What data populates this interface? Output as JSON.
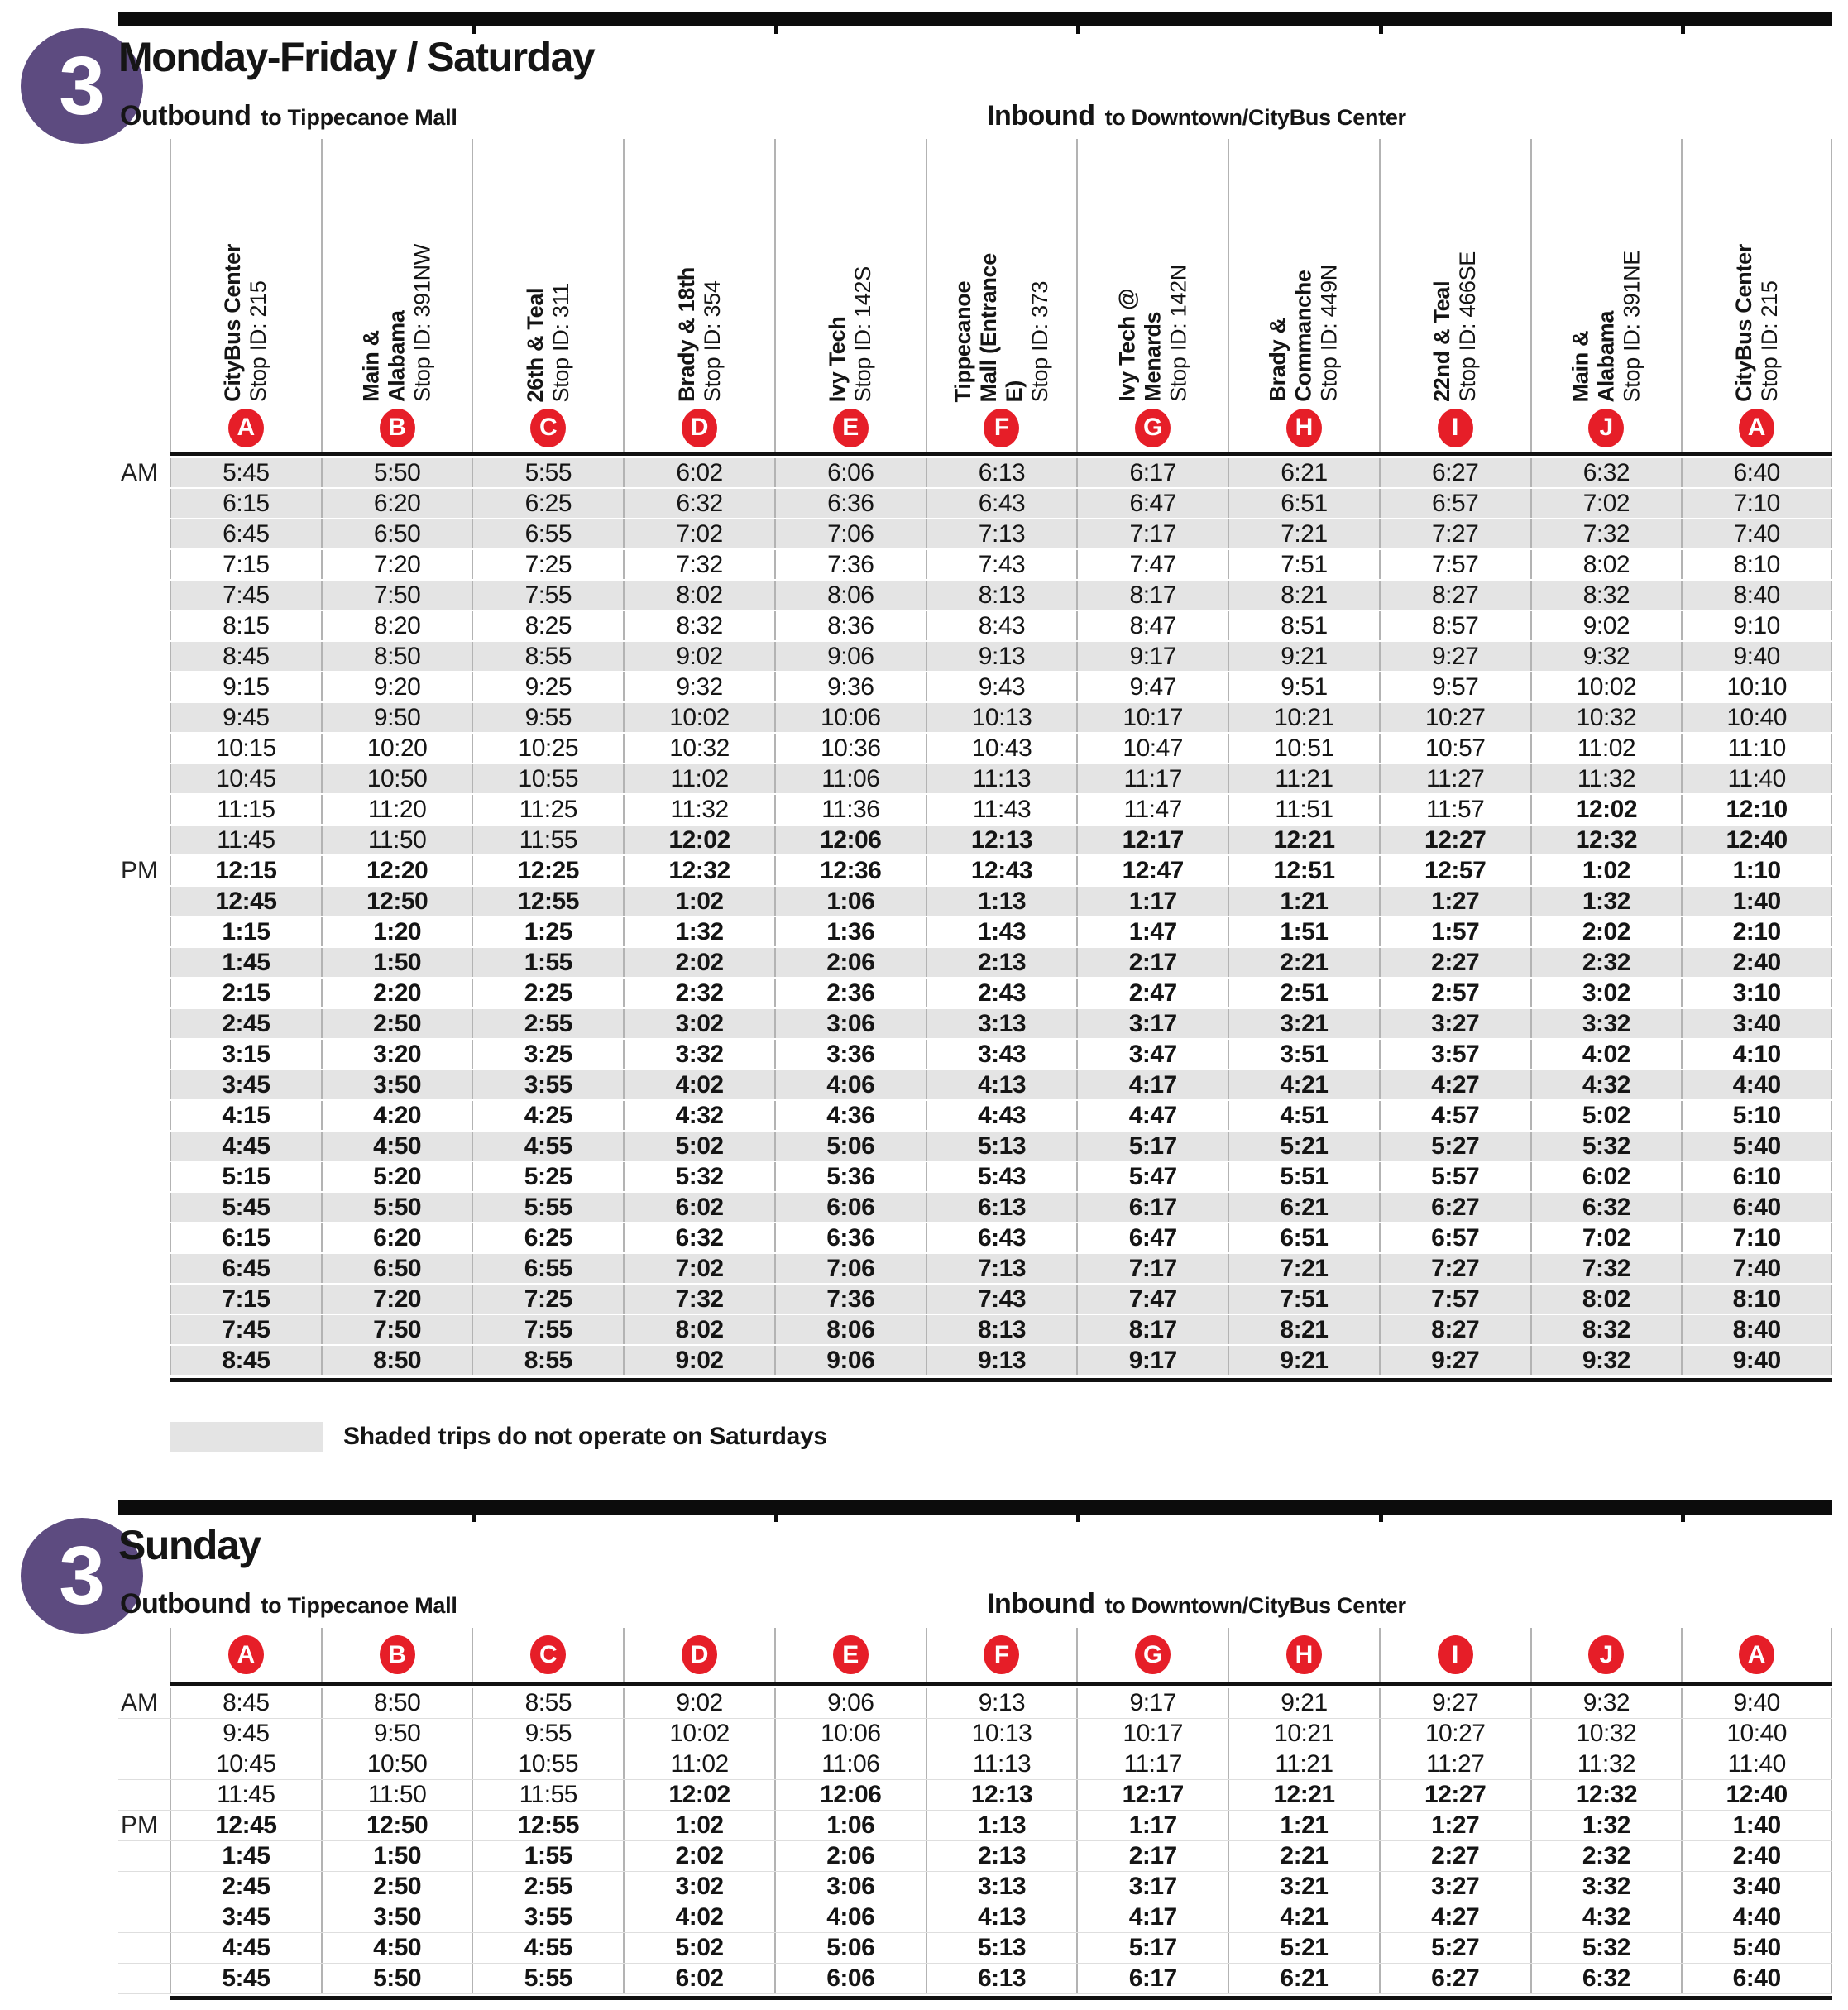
{
  "route_number": "3",
  "colors": {
    "badge_purple": "#5d4b80",
    "letter_red": "#e61e28",
    "row_shade": "#e4e4e4",
    "divider_gray": "#b3b3b3",
    "bar_black": "#0c0c0c"
  },
  "stops": [
    {
      "letter": "A",
      "name": "CityBus Center",
      "stop_id": "Stop ID: 215"
    },
    {
      "letter": "B",
      "name": "Main &\nAlabama",
      "stop_id": "Stop ID: 391NW"
    },
    {
      "letter": "C",
      "name": "26th & Teal",
      "stop_id": "Stop ID: 311"
    },
    {
      "letter": "D",
      "name": "Brady & 18th",
      "stop_id": "Stop ID: 354"
    },
    {
      "letter": "E",
      "name": "Ivy Tech",
      "stop_id": "Stop ID: 142S"
    },
    {
      "letter": "F",
      "name": "Tippecanoe\nMall (Entrance\nE)",
      "stop_id": "Stop ID: 373"
    },
    {
      "letter": "G",
      "name": "Ivy Tech @\nMenards",
      "stop_id": "Stop ID: 142N"
    },
    {
      "letter": "H",
      "name": "Brady &\nCommanche",
      "stop_id": "Stop ID: 449N"
    },
    {
      "letter": "I",
      "name": "22nd & Teal",
      "stop_id": "Stop ID: 466SE"
    },
    {
      "letter": "J",
      "name": "Main &\nAlabama",
      "stop_id": "Stop ID: 391NE"
    },
    {
      "letter": "A",
      "name": "CityBus Center",
      "stop_id": "Stop ID: 215"
    }
  ],
  "weekday": {
    "title": "Monday-Friday / Saturday",
    "outbound": {
      "label": "Outbound",
      "dest": "to Tippecanoe Mall"
    },
    "inbound": {
      "label": "Inbound",
      "dest": "to Downtown/CityBus Center"
    },
    "legend": "Shaded trips do not operate on Saturdays",
    "rows": [
      {
        "period": "AM",
        "shaded": true,
        "pm_from": 11,
        "times": [
          "5:45",
          "5:50",
          "5:55",
          "6:02",
          "6:06",
          "6:13",
          "6:17",
          "6:21",
          "6:27",
          "6:32",
          "6:40"
        ]
      },
      {
        "period": "",
        "shaded": true,
        "pm_from": 11,
        "times": [
          "6:15",
          "6:20",
          "6:25",
          "6:32",
          "6:36",
          "6:43",
          "6:47",
          "6:51",
          "6:57",
          "7:02",
          "7:10"
        ]
      },
      {
        "period": "",
        "shaded": true,
        "pm_from": 11,
        "times": [
          "6:45",
          "6:50",
          "6:55",
          "7:02",
          "7:06",
          "7:13",
          "7:17",
          "7:21",
          "7:27",
          "7:32",
          "7:40"
        ]
      },
      {
        "period": "",
        "shaded": false,
        "pm_from": 11,
        "times": [
          "7:15",
          "7:20",
          "7:25",
          "7:32",
          "7:36",
          "7:43",
          "7:47",
          "7:51",
          "7:57",
          "8:02",
          "8:10"
        ]
      },
      {
        "period": "",
        "shaded": true,
        "pm_from": 11,
        "times": [
          "7:45",
          "7:50",
          "7:55",
          "8:02",
          "8:06",
          "8:13",
          "8:17",
          "8:21",
          "8:27",
          "8:32",
          "8:40"
        ]
      },
      {
        "period": "",
        "shaded": false,
        "pm_from": 11,
        "times": [
          "8:15",
          "8:20",
          "8:25",
          "8:32",
          "8:36",
          "8:43",
          "8:47",
          "8:51",
          "8:57",
          "9:02",
          "9:10"
        ]
      },
      {
        "period": "",
        "shaded": true,
        "pm_from": 11,
        "times": [
          "8:45",
          "8:50",
          "8:55",
          "9:02",
          "9:06",
          "9:13",
          "9:17",
          "9:21",
          "9:27",
          "9:32",
          "9:40"
        ]
      },
      {
        "period": "",
        "shaded": false,
        "pm_from": 11,
        "times": [
          "9:15",
          "9:20",
          "9:25",
          "9:32",
          "9:36",
          "9:43",
          "9:47",
          "9:51",
          "9:57",
          "10:02",
          "10:10"
        ]
      },
      {
        "period": "",
        "shaded": true,
        "pm_from": 11,
        "times": [
          "9:45",
          "9:50",
          "9:55",
          "10:02",
          "10:06",
          "10:13",
          "10:17",
          "10:21",
          "10:27",
          "10:32",
          "10:40"
        ]
      },
      {
        "period": "",
        "shaded": false,
        "pm_from": 11,
        "times": [
          "10:15",
          "10:20",
          "10:25",
          "10:32",
          "10:36",
          "10:43",
          "10:47",
          "10:51",
          "10:57",
          "11:02",
          "11:10"
        ]
      },
      {
        "period": "",
        "shaded": true,
        "pm_from": 11,
        "times": [
          "10:45",
          "10:50",
          "10:55",
          "11:02",
          "11:06",
          "11:13",
          "11:17",
          "11:21",
          "11:27",
          "11:32",
          "11:40"
        ]
      },
      {
        "period": "",
        "shaded": false,
        "pm_from": 9,
        "times": [
          "11:15",
          "11:20",
          "11:25",
          "11:32",
          "11:36",
          "11:43",
          "11:47",
          "11:51",
          "11:57",
          "12:02",
          "12:10"
        ]
      },
      {
        "period": "",
        "shaded": true,
        "pm_from": 3,
        "times": [
          "11:45",
          "11:50",
          "11:55",
          "12:02",
          "12:06",
          "12:13",
          "12:17",
          "12:21",
          "12:27",
          "12:32",
          "12:40"
        ]
      },
      {
        "period": "PM",
        "shaded": false,
        "pm_from": 0,
        "times": [
          "12:15",
          "12:20",
          "12:25",
          "12:32",
          "12:36",
          "12:43",
          "12:47",
          "12:51",
          "12:57",
          "1:02",
          "1:10"
        ]
      },
      {
        "period": "",
        "shaded": true,
        "pm_from": 0,
        "times": [
          "12:45",
          "12:50",
          "12:55",
          "1:02",
          "1:06",
          "1:13",
          "1:17",
          "1:21",
          "1:27",
          "1:32",
          "1:40"
        ]
      },
      {
        "period": "",
        "shaded": false,
        "pm_from": 0,
        "times": [
          "1:15",
          "1:20",
          "1:25",
          "1:32",
          "1:36",
          "1:43",
          "1:47",
          "1:51",
          "1:57",
          "2:02",
          "2:10"
        ]
      },
      {
        "period": "",
        "shaded": true,
        "pm_from": 0,
        "times": [
          "1:45",
          "1:50",
          "1:55",
          "2:02",
          "2:06",
          "2:13",
          "2:17",
          "2:21",
          "2:27",
          "2:32",
          "2:40"
        ]
      },
      {
        "period": "",
        "shaded": false,
        "pm_from": 0,
        "times": [
          "2:15",
          "2:20",
          "2:25",
          "2:32",
          "2:36",
          "2:43",
          "2:47",
          "2:51",
          "2:57",
          "3:02",
          "3:10"
        ]
      },
      {
        "period": "",
        "shaded": true,
        "pm_from": 0,
        "times": [
          "2:45",
          "2:50",
          "2:55",
          "3:02",
          "3:06",
          "3:13",
          "3:17",
          "3:21",
          "3:27",
          "3:32",
          "3:40"
        ]
      },
      {
        "period": "",
        "shaded": false,
        "pm_from": 0,
        "times": [
          "3:15",
          "3:20",
          "3:25",
          "3:32",
          "3:36",
          "3:43",
          "3:47",
          "3:51",
          "3:57",
          "4:02",
          "4:10"
        ]
      },
      {
        "period": "",
        "shaded": true,
        "pm_from": 0,
        "times": [
          "3:45",
          "3:50",
          "3:55",
          "4:02",
          "4:06",
          "4:13",
          "4:17",
          "4:21",
          "4:27",
          "4:32",
          "4:40"
        ]
      },
      {
        "period": "",
        "shaded": false,
        "pm_from": 0,
        "times": [
          "4:15",
          "4:20",
          "4:25",
          "4:32",
          "4:36",
          "4:43",
          "4:47",
          "4:51",
          "4:57",
          "5:02",
          "5:10"
        ]
      },
      {
        "period": "",
        "shaded": true,
        "pm_from": 0,
        "times": [
          "4:45",
          "4:50",
          "4:55",
          "5:02",
          "5:06",
          "5:13",
          "5:17",
          "5:21",
          "5:27",
          "5:32",
          "5:40"
        ]
      },
      {
        "period": "",
        "shaded": false,
        "pm_from": 0,
        "times": [
          "5:15",
          "5:20",
          "5:25",
          "5:32",
          "5:36",
          "5:43",
          "5:47",
          "5:51",
          "5:57",
          "6:02",
          "6:10"
        ]
      },
      {
        "period": "",
        "shaded": true,
        "pm_from": 0,
        "times": [
          "5:45",
          "5:50",
          "5:55",
          "6:02",
          "6:06",
          "6:13",
          "6:17",
          "6:21",
          "6:27",
          "6:32",
          "6:40"
        ]
      },
      {
        "period": "",
        "shaded": false,
        "pm_from": 0,
        "times": [
          "6:15",
          "6:20",
          "6:25",
          "6:32",
          "6:36",
          "6:43",
          "6:47",
          "6:51",
          "6:57",
          "7:02",
          "7:10"
        ]
      },
      {
        "period": "",
        "shaded": true,
        "pm_from": 0,
        "times": [
          "6:45",
          "6:50",
          "6:55",
          "7:02",
          "7:06",
          "7:13",
          "7:17",
          "7:21",
          "7:27",
          "7:32",
          "7:40"
        ]
      },
      {
        "period": "",
        "shaded": true,
        "pm_from": 0,
        "times": [
          "7:15",
          "7:20",
          "7:25",
          "7:32",
          "7:36",
          "7:43",
          "7:47",
          "7:51",
          "7:57",
          "8:02",
          "8:10"
        ]
      },
      {
        "period": "",
        "shaded": true,
        "pm_from": 0,
        "times": [
          "7:45",
          "7:50",
          "7:55",
          "8:02",
          "8:06",
          "8:13",
          "8:17",
          "8:21",
          "8:27",
          "8:32",
          "8:40"
        ]
      },
      {
        "period": "",
        "shaded": true,
        "pm_from": 0,
        "times": [
          "8:45",
          "8:50",
          "8:55",
          "9:02",
          "9:06",
          "9:13",
          "9:17",
          "9:21",
          "9:27",
          "9:32",
          "9:40"
        ]
      }
    ]
  },
  "sunday": {
    "title": "Sunday",
    "outbound": {
      "label": "Outbound",
      "dest": "to Tippecanoe Mall"
    },
    "inbound": {
      "label": "Inbound",
      "dest": "to Downtown/CityBus Center"
    },
    "rows": [
      {
        "period": "AM",
        "shaded": false,
        "pm_from": 11,
        "times": [
          "8:45",
          "8:50",
          "8:55",
          "9:02",
          "9:06",
          "9:13",
          "9:17",
          "9:21",
          "9:27",
          "9:32",
          "9:40"
        ]
      },
      {
        "period": "",
        "shaded": false,
        "pm_from": 11,
        "times": [
          "9:45",
          "9:50",
          "9:55",
          "10:02",
          "10:06",
          "10:13",
          "10:17",
          "10:21",
          "10:27",
          "10:32",
          "10:40"
        ]
      },
      {
        "period": "",
        "shaded": false,
        "pm_from": 11,
        "times": [
          "10:45",
          "10:50",
          "10:55",
          "11:02",
          "11:06",
          "11:13",
          "11:17",
          "11:21",
          "11:27",
          "11:32",
          "11:40"
        ]
      },
      {
        "period": "",
        "shaded": false,
        "pm_from": 3,
        "times": [
          "11:45",
          "11:50",
          "11:55",
          "12:02",
          "12:06",
          "12:13",
          "12:17",
          "12:21",
          "12:27",
          "12:32",
          "12:40"
        ]
      },
      {
        "period": "PM",
        "shaded": false,
        "pm_from": 0,
        "times": [
          "12:45",
          "12:50",
          "12:55",
          "1:02",
          "1:06",
          "1:13",
          "1:17",
          "1:21",
          "1:27",
          "1:32",
          "1:40"
        ]
      },
      {
        "period": "",
        "shaded": false,
        "pm_from": 0,
        "times": [
          "1:45",
          "1:50",
          "1:55",
          "2:02",
          "2:06",
          "2:13",
          "2:17",
          "2:21",
          "2:27",
          "2:32",
          "2:40"
        ]
      },
      {
        "period": "",
        "shaded": false,
        "pm_from": 0,
        "times": [
          "2:45",
          "2:50",
          "2:55",
          "3:02",
          "3:06",
          "3:13",
          "3:17",
          "3:21",
          "3:27",
          "3:32",
          "3:40"
        ]
      },
      {
        "period": "",
        "shaded": false,
        "pm_from": 0,
        "times": [
          "3:45",
          "3:50",
          "3:55",
          "4:02",
          "4:06",
          "4:13",
          "4:17",
          "4:21",
          "4:27",
          "4:32",
          "4:40"
        ]
      },
      {
        "period": "",
        "shaded": false,
        "pm_from": 0,
        "times": [
          "4:45",
          "4:50",
          "4:55",
          "5:02",
          "5:06",
          "5:13",
          "5:17",
          "5:21",
          "5:27",
          "5:32",
          "5:40"
        ]
      },
      {
        "period": "",
        "shaded": false,
        "pm_from": 0,
        "times": [
          "5:45",
          "5:50",
          "5:55",
          "6:02",
          "6:06",
          "6:13",
          "6:17",
          "6:21",
          "6:27",
          "6:32",
          "6:40"
        ]
      }
    ]
  }
}
